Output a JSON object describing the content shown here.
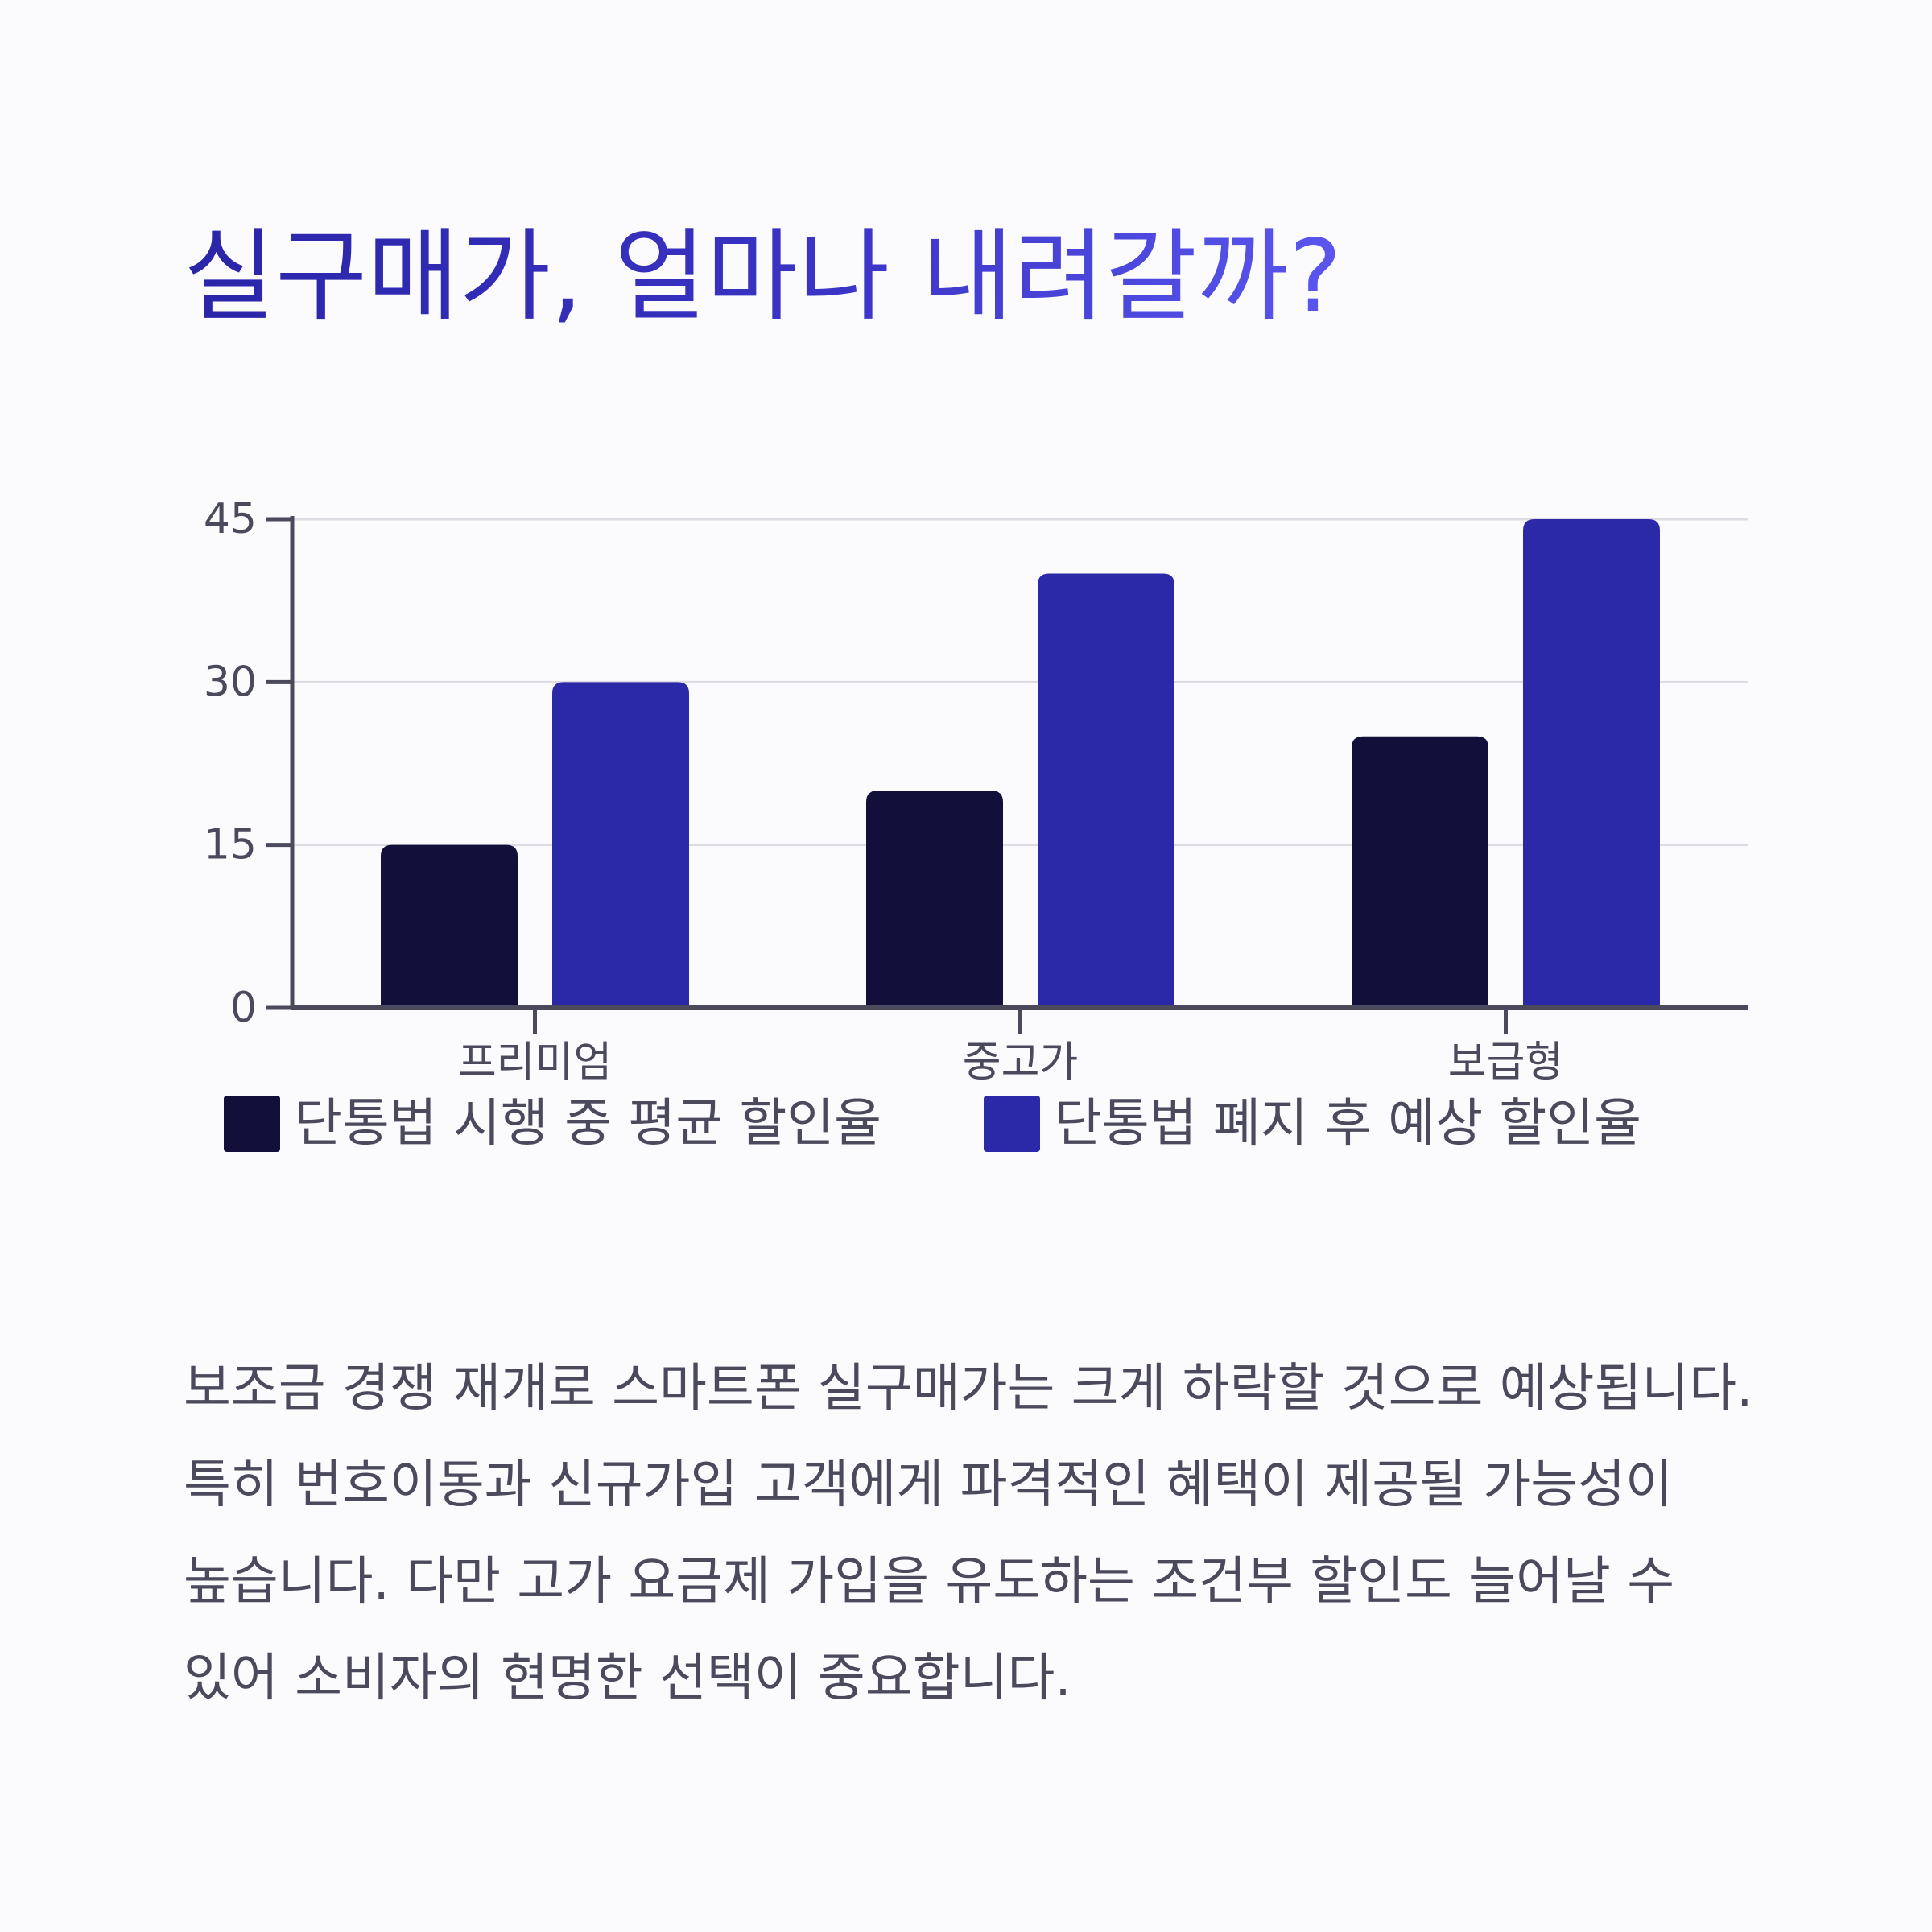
{
  "title": "실구매가, 얼마나 내려갈까?",
  "chart_data": {
    "type": "bar",
    "categories": [
      "프리미엄",
      "중고가",
      "보급형"
    ],
    "series": [
      {
        "name": "단통법 시행 중 평균 할인율",
        "values": [
          15,
          20,
          25
        ]
      },
      {
        "name": "단통법 폐지 후 예상 할인율",
        "values": [
          30,
          40,
          45
        ]
      }
    ],
    "ylim": [
      0,
      45
    ],
    "yticks": [
      0,
      15,
      30,
      45
    ],
    "grid": true,
    "legend_position": "bottom",
    "colors": [
      "#120f3a",
      "#2c29a8"
    ]
  },
  "description": "보조금 경쟁 재개로 스마트폰 실구매가는 크게 하락할 것으로 예상됩니다. 특히 번호이동과 신규가입 고객에게 파격적인 혜택이 제공될 가능성이 높습니다. 다만 고가 요금제 가입을 유도하는 조건부 할인도 늘어날 수 있어 소비자의 현명한 선택이 중요합니다."
}
